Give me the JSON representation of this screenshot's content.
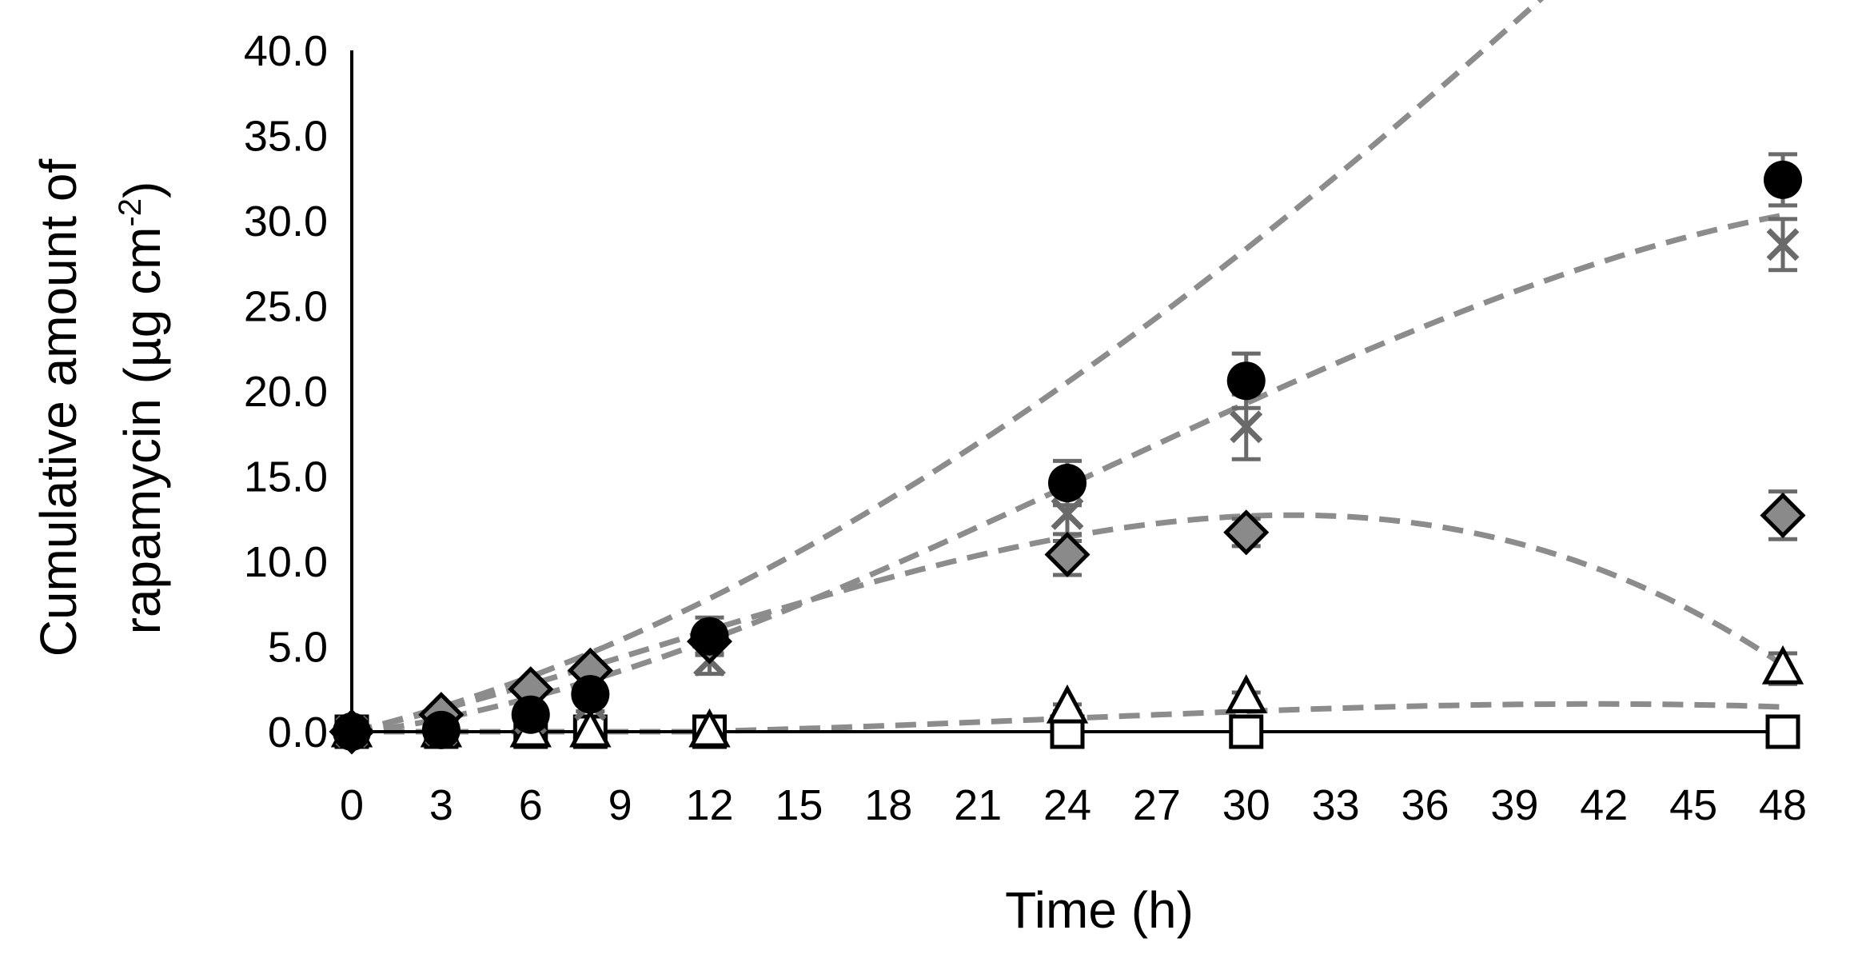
{
  "chart_data": {
    "type": "scatter",
    "xlabel": "Time (h)",
    "ylabel_line1": "Cumulative amount of",
    "ylabel_line2_prefix": "rapamycin (µg cm",
    "ylabel_line2_sup": "-2",
    "ylabel_line2_suffix": ")",
    "xlim": [
      0,
      48
    ],
    "ylim": [
      0,
      40
    ],
    "x_ticks": [
      "0",
      "3",
      "6",
      "9",
      "12",
      "15",
      "18",
      "21",
      "24",
      "27",
      "30",
      "33",
      "36",
      "39",
      "42",
      "45",
      "48"
    ],
    "y_ticks": [
      "0.0",
      "5.0",
      "10.0",
      "15.0",
      "20.0",
      "25.0",
      "30.0",
      "35.0",
      "40.0"
    ],
    "grid": false,
    "legend": "none",
    "trendline_color": "#8c8c8c",
    "series": [
      {
        "marker": "circle",
        "x": [
          0,
          3,
          6,
          8,
          12,
          24,
          30,
          48
        ],
        "y": [
          0.0,
          0.1,
          1.0,
          2.2,
          5.6,
          14.6,
          20.6,
          32.4
        ],
        "err": [
          0,
          0,
          0,
          0.5,
          1.1,
          1.3,
          1.6,
          1.5
        ],
        "fit": [
          0,
          0.42,
          0.0205,
          -0.0001
        ]
      },
      {
        "marker": "x",
        "x": [
          0,
          3,
          6,
          8,
          12,
          24,
          30,
          48
        ],
        "y": [
          0.0,
          0.1,
          0.8,
          1.6,
          4.2,
          12.8,
          17.9,
          28.6
        ],
        "err": [
          0,
          0,
          0,
          0.4,
          0.8,
          1.6,
          1.9,
          1.5
        ],
        "fit": [
          -0.1,
          0.22,
          0.0235,
          -0.00031
        ]
      },
      {
        "marker": "diamond",
        "x": [
          0,
          3,
          6,
          8,
          12,
          24,
          30,
          48
        ],
        "y": [
          0.0,
          1.0,
          2.5,
          3.6,
          5.3,
          10.4,
          11.7,
          12.7
        ],
        "err": [
          0,
          0,
          0,
          0.4,
          0.7,
          1.2,
          0.8,
          1.4
        ],
        "fit": [
          0,
          0.4,
          0.013,
          -0.000409
        ]
      },
      {
        "marker": "triangle",
        "x": [
          0,
          3,
          6,
          8,
          12,
          24,
          30,
          48
        ],
        "y": [
          0.0,
          0.0,
          0.0,
          0.0,
          0.0,
          1.4,
          2.0,
          3.7
        ],
        "err": [
          0,
          0,
          0,
          0,
          0,
          0.2,
          0.3,
          0.9
        ],
        "fit": [
          0,
          -0.05,
          0.0052,
          -7.35e-05
        ]
      },
      {
        "marker": "square",
        "x": [
          0,
          3,
          6,
          8,
          12,
          24,
          30,
          48
        ],
        "y": [
          0.0,
          0.0,
          0.0,
          0.0,
          0.0,
          0.0,
          0.0,
          0.0
        ],
        "err": [
          0,
          0,
          0,
          0,
          0,
          0,
          0,
          0
        ],
        "fit": null
      }
    ]
  }
}
